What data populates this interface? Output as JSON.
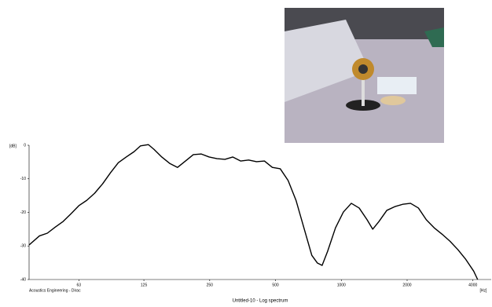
{
  "chart_data": {
    "type": "line",
    "title": "Untitled-10 - Log spectrum",
    "footer": "Acoustics Engineering - Dirac",
    "ylabel": "[dB]",
    "xlabel": "[Hz]",
    "xscale": "log",
    "xlim": [
      37.3,
      4850
    ],
    "ylim": [
      -40,
      0
    ],
    "xticks": [
      63,
      125,
      250,
      500,
      1000,
      2000,
      4000
    ],
    "yticks": [
      0,
      -10,
      -20,
      -30,
      -40
    ],
    "x": [
      37.3,
      41.6,
      45.2,
      49.1,
      53.4,
      58,
      63,
      68.5,
      74.4,
      80.9,
      87.9,
      95.5,
      103.8,
      112.8,
      120.5,
      131,
      138.9,
      150.9,
      164,
      178.2,
      193.7,
      210.4,
      228.7,
      248.5,
      270,
      293.6,
      319,
      346.7,
      376.8,
      409.4,
      445,
      483.5,
      525.5,
      571,
      620.5,
      674.4,
      732.9,
      777.5,
      817,
      865.5,
      940.6,
      1022,
      1111,
      1207,
      1312,
      1392,
      1487,
      1615,
      1755,
      1907,
      2073,
      2253,
      2448,
      2660,
      2891,
      3142,
      3414,
      3710,
      4032,
      4204
    ],
    "series": [
      {
        "color": "#000000",
        "values": [
          -29.7,
          -27,
          -26.2,
          -24.4,
          -22.7,
          -20.4,
          -18,
          -16.4,
          -14.3,
          -11.5,
          -8.2,
          -5.2,
          -3.5,
          -1.9,
          -0.2,
          0.2,
          -1.2,
          -3.5,
          -5.4,
          -6.6,
          -4.7,
          -2.8,
          -2.6,
          -3.5,
          -4,
          -4.2,
          -3.5,
          -4.7,
          -4.4,
          -4.9,
          -4.7,
          -6.6,
          -7,
          -10.5,
          -16.4,
          -24.6,
          -32.8,
          -35.1,
          -35.8,
          -31.6,
          -24.6,
          -19.9,
          -17.3,
          -18.7,
          -22.2,
          -25,
          -22.7,
          -19.4,
          -18.3,
          -17.6,
          -17.3,
          -18.7,
          -22.2,
          -24.6,
          -26.5,
          -28.6,
          -31.1,
          -34,
          -37.5,
          -40
        ]
      }
    ]
  }
}
